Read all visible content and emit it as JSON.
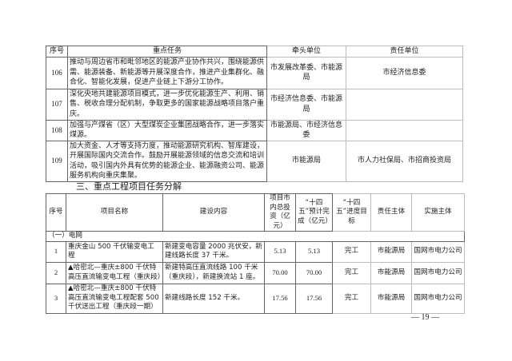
{
  "task_table": {
    "headers": [
      "序号",
      "重点任务",
      "牵头单位",
      "责任单位"
    ],
    "rows": [
      {
        "no": "106",
        "task": "推动与周边省市和毗邻地区的能源产业协作共兴，围绕能源供需、能源装备、新能源等开展深度合作，推进产业集群化、融合化、智能化发展，促进产业链上下游分工协作。",
        "lead": "市发展改革委、市能源局",
        "resp": "市经济信息委"
      },
      {
        "no": "107",
        "task": "深化央地共建能源项目模式，进一步优化能源生产、利用、销售、税收合理分配机制，争取更多的国家能源战略项目落户重庆。",
        "lead": "市经济信息委、市能源局",
        "resp": ""
      },
      {
        "no": "108",
        "task": "加强与产煤省（区）大型煤炭企业集团战略合作，进一步落实煤源。",
        "lead": "市能源局、市经济信息委",
        "resp": ""
      },
      {
        "no": "109",
        "task": "加大资金、人才等支持力度，推动能源研究机构、智库建设，开展国际国内交流合作。鼓励开展能源领域的信息交流和培训活动，吸引国内外具有优势的能源企业、能源融资公司、能源服务机构向重庆集聚。",
        "lead": "市能源局",
        "resp": "市人力社保局、市招商投资局"
      }
    ]
  },
  "section_title": "三、重点工程项目任务分解",
  "project_table": {
    "headers": [
      "序号",
      "项目名称",
      "建设内容",
      "项目市内总投资（亿元）",
      "“十四五”预计完成（亿元）",
      "“十四五”进度目标",
      "责任主体",
      "实施主体"
    ],
    "group": "（一）电网",
    "rows": [
      {
        "no": "1",
        "name": "重庆金山 500 千伏输变电工程",
        "content": "新建变电容量 2000 兆伏安，新建线路长度 37 千米。",
        "invest": "5.13",
        "plan": "5.13",
        "target": "完工",
        "resp": "市能源局",
        "impl": "国网市电力公司"
      },
      {
        "no": "2",
        "name": "▲哈密北—重庆±800 千伏特高压直流输变电工程（重庆段）",
        "content": "新建特高压直流线路 100 千米（重庆段），新建换流站 1 座。",
        "invest": "70.00",
        "plan": "70.00",
        "target": "完工",
        "resp": "市能源局",
        "impl": "国网市电力公司"
      },
      {
        "no": "3",
        "name": "▲哈密北—重庆±800 千伏特高压直流输变电工程配套 500 千伏送出工程（重庆段一期）",
        "content": "新建线路长度 152 千米。",
        "invest": "17.56",
        "plan": "17.56",
        "target": "完工",
        "resp": "市能源局",
        "impl": "国网市电力公司"
      }
    ]
  },
  "page_number": "— 19 —"
}
